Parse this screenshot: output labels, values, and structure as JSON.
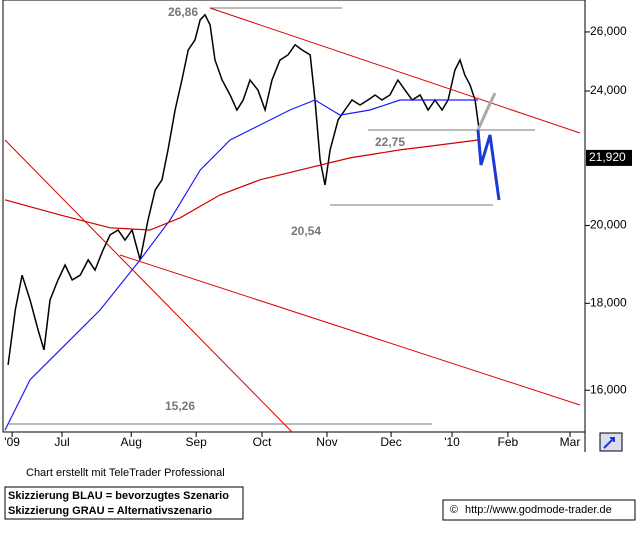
{
  "chart_data": {
    "type": "line",
    "log_scale": true,
    "grid": false,
    "xlim": [
      -2.5,
      200.5
    ],
    "ylim": [
      15.12,
      27.15
    ],
    "xticks": [
      {
        "value": 0,
        "label": "'09"
      },
      {
        "value": 17.5,
        "label": "Jul"
      },
      {
        "value": 41.8,
        "label": "Aug"
      },
      {
        "value": 64.6,
        "label": "Sep"
      },
      {
        "value": 87.7,
        "label": "Oct"
      },
      {
        "value": 110.5,
        "label": "Nov"
      },
      {
        "value": 133,
        "label": "Dec"
      },
      {
        "value": 154.4,
        "label": "'10"
      },
      {
        "value": 174,
        "label": "Feb"
      },
      {
        "value": 195.8,
        "label": "Mar"
      }
    ],
    "yticks": [
      {
        "value": 16,
        "label": "16,000"
      },
      {
        "value": 18,
        "label": "18,000"
      },
      {
        "value": 20,
        "label": "20,000"
      },
      {
        "value": 24,
        "label": "24,000"
      },
      {
        "value": 26,
        "label": "26,000"
      }
    ],
    "last_price": {
      "value": 21.92,
      "label": "21,920"
    },
    "annotations": [
      "26,86",
      "22,75",
      "20,54",
      "15,26"
    ],
    "series": [
      {
        "color": "#000000",
        "x": [
          -1.4,
          1.1,
          3.5,
          6.3,
          9.1,
          11.2,
          13.3,
          16.1,
          18.6,
          21.1,
          23.9,
          26.7,
          29.1,
          31.9,
          34.4,
          37.2,
          39.6,
          42.1,
          44.9,
          47.7,
          50.2,
          52.6,
          54.7,
          57.2,
          59.6,
          61.8,
          64.2,
          66,
          67.7,
          69.5,
          71.2,
          73.7,
          76.5,
          78.9,
          81.1,
          83.5,
          86.3,
          88.8,
          91.2,
          94,
          96.8,
          99.3,
          101.8,
          104.6,
          106.3,
          108.1,
          109.8,
          111.6,
          114.4,
          116.8,
          119.3,
          122.1,
          124.9,
          127.4,
          129.8,
          132.6,
          135.4,
          137.9,
          140.4,
          143.2,
          146,
          148.4,
          150.9,
          153,
          155.4,
          157.2,
          158.9,
          160.7,
          162.5,
          163.9
        ],
        "values": [
          16.56,
          17.84,
          18.7,
          18.08,
          17.36,
          16.9,
          18.08,
          18.58,
          18.96,
          18.58,
          18.7,
          19.09,
          18.83,
          19.35,
          19.75,
          19.88,
          19.61,
          19.88,
          19.09,
          20.15,
          20.99,
          21.28,
          22.16,
          23.39,
          24.36,
          25.37,
          25.72,
          26.43,
          26.61,
          26.25,
          25.03,
          24.36,
          23.87,
          23.39,
          23.71,
          24.36,
          24.03,
          23.39,
          24.36,
          25.03,
          25.2,
          25.55,
          25.37,
          25.2,
          23.71,
          21.86,
          21.13,
          22.16,
          23.08,
          23.39,
          23.71,
          23.55,
          23.71,
          23.87,
          23.71,
          23.87,
          24.36,
          24.03,
          23.71,
          23.87,
          23.39,
          23.71,
          23.39,
          23.71,
          24.69,
          25.03,
          24.52,
          24.2,
          23.71,
          22.77
        ]
      },
      {
        "color": "#1a1aff",
        "x": [
          -2.5,
          6.3,
          16.8,
          30.9,
          44.9,
          55.4,
          66,
          76.5,
          87,
          97.5,
          106.3,
          115.1,
          125.6,
          136.1,
          146.7,
          157.2,
          163.5
        ],
        "values": [
          15.16,
          16.23,
          16.9,
          17.84,
          19.09,
          20.15,
          21.56,
          22.46,
          22.92,
          23.39,
          23.71,
          23.23,
          23.39,
          23.71,
          23.71,
          23.71,
          23.71
        ]
      },
      {
        "color": "#d00000",
        "x": [
          -2.5,
          16.8,
          34.4,
          48.4,
          58.9,
          73,
          87,
          101,
          118.6,
          136.1,
          150.2,
          163.5
        ],
        "values": [
          20.71,
          20.29,
          19.94,
          19.88,
          20.21,
          20.85,
          21.28,
          21.56,
          21.92,
          22.16,
          22.31,
          22.46
        ]
      }
    ]
  },
  "footer": {
    "credit": "Chart erstellt mit TeleTrader Professional",
    "legend": [
      "Skizzierung BLAU = bevorzugtes Szenario",
      "Skizzierung GRAU = Alternativszenario"
    ],
    "source": "http://www.godmode-trader.de"
  }
}
